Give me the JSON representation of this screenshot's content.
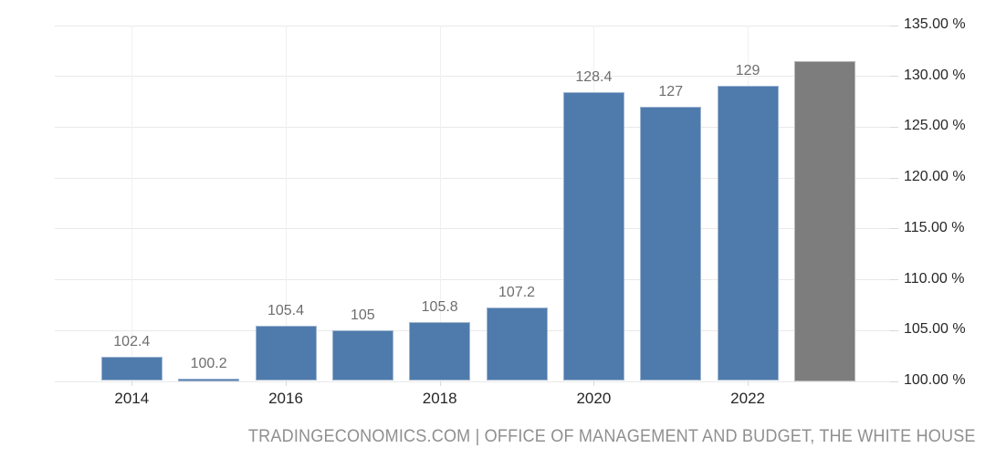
{
  "chart_data": {
    "type": "bar",
    "title": "",
    "xlabel": "",
    "ylabel": "",
    "categories": [
      "2014",
      "2015",
      "2016",
      "2017",
      "2018",
      "2019",
      "2020",
      "2021",
      "2022",
      "2023"
    ],
    "values": [
      102.4,
      100.2,
      105.4,
      105,
      105.8,
      107.2,
      128.4,
      127,
      129,
      131.5
    ],
    "data_labels": [
      "102.4",
      "100.2",
      "105.4",
      "105",
      "105.8",
      "107.2",
      "128.4",
      "127",
      "129",
      ""
    ],
    "bar_colors": [
      "#4f7aac",
      "#4f7aac",
      "#4f7aac",
      "#4f7aac",
      "#4f7aac",
      "#4f7aac",
      "#4f7aac",
      "#4f7aac",
      "#4f7aac",
      "#7d7d7d"
    ],
    "ylim": [
      100,
      135
    ],
    "y_tick_step": 5,
    "y_tick_labels": [
      "100.00 %",
      "105.00 %",
      "110.00 %",
      "115.00 %",
      "120.00 %",
      "125.00 %",
      "130.00 %",
      "135.00 %"
    ],
    "x_tick_labels": [
      "2014",
      "2016",
      "2018",
      "2020",
      "2022"
    ],
    "x_tick_indices": [
      0,
      2,
      4,
      6,
      8
    ],
    "grid": true,
    "legend_position": "none",
    "y_axis_side": "right"
  },
  "footer": {
    "text": "TRADINGECONOMICS.COM | OFFICE OF MANAGEMENT AND BUDGET, THE WHITE HOUSE"
  },
  "colors": {
    "bar_blue": "#4f7aac",
    "bar_gray": "#7d7d7d",
    "grid_h": "#e9e9e9",
    "grid_v": "#f0f0f0",
    "axis_text": "#262626",
    "value_label_text": "#6e6e6e",
    "footer_text": "#8f8f8f",
    "background": "#ffffff"
  }
}
